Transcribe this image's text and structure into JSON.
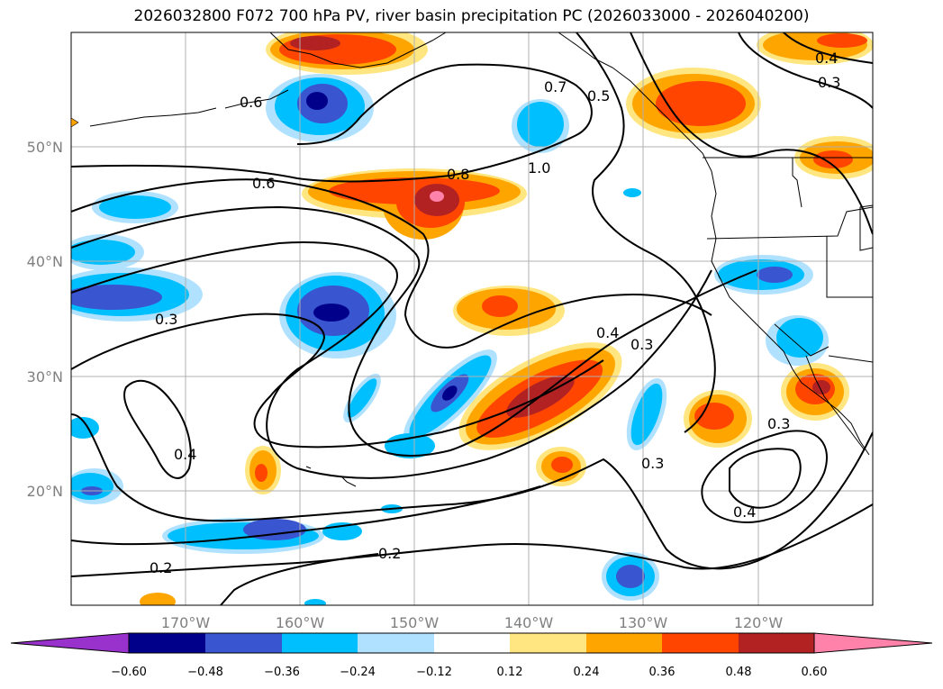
{
  "title": "2026032800 F072 700 hPa PV, river basin precipitation PC (2026033000 - 2026040200)",
  "axes": {
    "lon_ticks": [
      "170°W",
      "160°W",
      "150°W",
      "140°W",
      "130°W",
      "120°W"
    ],
    "lat_ticks": [
      "50°N",
      "40°N",
      "30°N",
      "20°N"
    ]
  },
  "contour_labels": [
    "0.6",
    "0.7",
    "0.5",
    "0.4",
    "0.3",
    "0.6",
    "0.8",
    "1.0",
    "0.3",
    "0.4",
    "0.3",
    "0.4",
    "0.3",
    "0.3",
    "0.4",
    "0.2",
    "0.2"
  ],
  "colorbar": {
    "ticks": [
      "−0.60",
      "−0.48",
      "−0.36",
      "−0.24",
      "−0.12",
      "0.12",
      "0.24",
      "0.36",
      "0.48",
      "0.60"
    ],
    "colors": [
      "#9932cc",
      "#00008b",
      "#3a55d0",
      "#00bfff",
      "#b0e2ff",
      "#ffffff",
      "#ffe680",
      "#ffa500",
      "#ff4500",
      "#b22222",
      "#ff82ab"
    ]
  }
}
